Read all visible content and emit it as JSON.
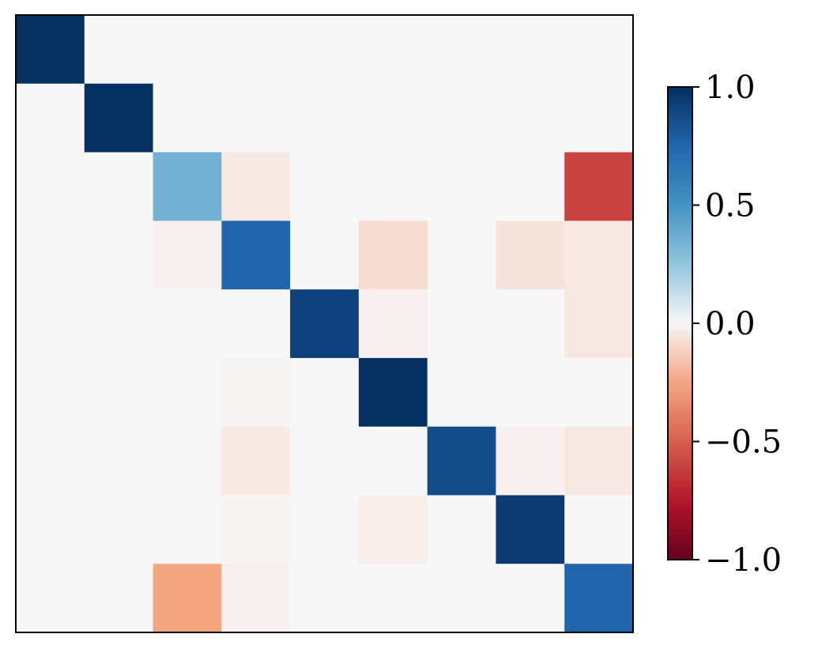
{
  "chart_data": {
    "type": "heatmap",
    "title": "",
    "xlabel": "",
    "ylabel": "",
    "rows": 9,
    "cols": 9,
    "matrix": [
      [
        1.0,
        0,
        0,
        0,
        0,
        0,
        0,
        0,
        0
      ],
      [
        0,
        1.0,
        0,
        0,
        0,
        0,
        0,
        0,
        0
      ],
      [
        0,
        0,
        0.35,
        -0.04,
        0,
        0,
        0,
        0,
        -0.6
      ],
      [
        0,
        0,
        -0.02,
        0.75,
        0,
        -0.08,
        0,
        -0.06,
        -0.05
      ],
      [
        0,
        0,
        0,
        0,
        0.92,
        -0.02,
        0,
        0,
        -0.05
      ],
      [
        0,
        0,
        0,
        -0.01,
        0,
        1.0,
        0,
        0,
        0
      ],
      [
        0,
        0,
        0,
        -0.04,
        0,
        0,
        0.87,
        -0.02,
        -0.05
      ],
      [
        0,
        0,
        0,
        -0.01,
        0,
        -0.03,
        0,
        0.95,
        0
      ],
      [
        0,
        0,
        -0.25,
        -0.02,
        0,
        0,
        0,
        0,
        0.75
      ]
    ],
    "colorbar": {
      "colormap": "RdBu",
      "vmin": -1.0,
      "vmax": 1.0,
      "ticks": [
        1.0,
        0.5,
        0.0,
        -0.5,
        -1.0
      ],
      "tick_labels": [
        "1.0",
        "0.5",
        "0.0",
        "−0.5",
        "−1.0"
      ]
    },
    "axis_ticks_visible": false,
    "grid": false
  }
}
